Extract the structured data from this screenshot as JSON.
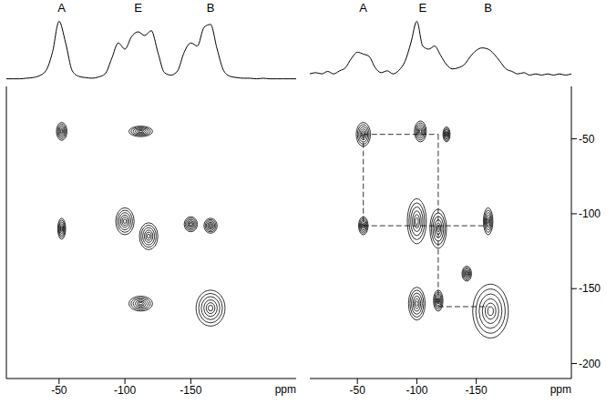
{
  "chart_data": [
    {
      "type": "contour",
      "xlabel": "ppm",
      "xlim": [
        -10,
        -230
      ],
      "xticks": [
        -50,
        -100,
        -150
      ],
      "ylim": [
        -210,
        -15
      ],
      "tick_labels": "x",
      "labels": [
        {
          "text": "A",
          "x": -52
        },
        {
          "text": "E",
          "x": -110
        },
        {
          "text": "B",
          "x": -165
        }
      ],
      "projection": {
        "ylim": [
          0,
          1
        ],
        "x": [
          -10,
          -15,
          -20,
          -25,
          -30,
          -35,
          -40,
          -45,
          -50,
          -55,
          -60,
          -65,
          -70,
          -75,
          -80,
          -85,
          -90,
          -95,
          -100,
          -105,
          -110,
          -115,
          -120,
          -125,
          -130,
          -135,
          -140,
          -145,
          -150,
          -155,
          -160,
          -165,
          -170,
          -175,
          -180,
          -185,
          -190,
          -195,
          -200,
          -205,
          -210,
          -215,
          -220,
          -225,
          -230
        ],
        "values": [
          0.02,
          0.02,
          0.02,
          0.03,
          0.04,
          0.07,
          0.15,
          0.45,
          0.95,
          0.6,
          0.15,
          0.06,
          0.04,
          0.03,
          0.05,
          0.1,
          0.35,
          0.6,
          0.5,
          0.7,
          0.78,
          0.72,
          0.8,
          0.45,
          0.12,
          0.08,
          0.15,
          0.45,
          0.6,
          0.55,
          0.85,
          0.9,
          0.5,
          0.15,
          0.06,
          0.04,
          0.03,
          0.03,
          0.02,
          0.03,
          0.02,
          0.02,
          0.02,
          0.02,
          0.02
        ]
      },
      "peaks": [
        {
          "x": -52,
          "y": -45,
          "width": 8,
          "height": 12
        },
        {
          "x": -52,
          "y": -110,
          "width": 6,
          "height": 14
        },
        {
          "x": -112,
          "y": -45,
          "width": 18,
          "height": 7
        },
        {
          "x": -100,
          "y": -105,
          "width": 14,
          "height": 18
        },
        {
          "x": -118,
          "y": -115,
          "width": 14,
          "height": 18
        },
        {
          "x": -150,
          "y": -107,
          "width": 10,
          "height": 10
        },
        {
          "x": -165,
          "y": -108,
          "width": 10,
          "height": 10
        },
        {
          "x": -112,
          "y": -160,
          "width": 18,
          "height": 10
        },
        {
          "x": -165,
          "y": -163,
          "width": 22,
          "height": 24
        }
      ],
      "connections": []
    },
    {
      "type": "contour",
      "xlabel": "ppm",
      "xlim": [
        -10,
        -230
      ],
      "xticks": [
        -50,
        -100,
        -150
      ],
      "ylim": [
        -210,
        -15
      ],
      "yticks": [
        -50,
        -100,
        -150,
        -200
      ],
      "labels": [
        {
          "text": "A",
          "x": -55
        },
        {
          "text": "E",
          "x": -105
        },
        {
          "text": "B",
          "x": -160
        }
      ],
      "projection": {
        "ylim": [
          0,
          1
        ],
        "x": [
          -10,
          -15,
          -20,
          -25,
          -30,
          -35,
          -40,
          -45,
          -50,
          -55,
          -60,
          -65,
          -70,
          -75,
          -80,
          -85,
          -90,
          -95,
          -100,
          -105,
          -110,
          -115,
          -120,
          -125,
          -130,
          -135,
          -140,
          -145,
          -150,
          -155,
          -160,
          -165,
          -170,
          -175,
          -180,
          -185,
          -190,
          -195,
          -200,
          -205,
          -210,
          -215,
          -220,
          -225,
          -230
        ],
        "values": [
          0.1,
          0.12,
          0.1,
          0.14,
          0.1,
          0.15,
          0.2,
          0.35,
          0.45,
          0.42,
          0.38,
          0.2,
          0.12,
          0.15,
          0.1,
          0.16,
          0.3,
          0.6,
          0.95,
          0.55,
          0.5,
          0.55,
          0.4,
          0.25,
          0.18,
          0.2,
          0.25,
          0.38,
          0.48,
          0.52,
          0.5,
          0.42,
          0.3,
          0.18,
          0.14,
          0.1,
          0.12,
          0.08,
          0.1,
          0.08,
          0.1,
          0.08,
          0.1,
          0.08,
          0.1
        ]
      },
      "peaks": [
        {
          "x": -55,
          "y": -47,
          "width": 12,
          "height": 16
        },
        {
          "x": -55,
          "y": -108,
          "width": 8,
          "height": 12
        },
        {
          "x": -103,
          "y": -45,
          "width": 10,
          "height": 14
        },
        {
          "x": -125,
          "y": -47,
          "width": 6,
          "height": 10
        },
        {
          "x": -100,
          "y": -105,
          "width": 16,
          "height": 30
        },
        {
          "x": -118,
          "y": -110,
          "width": 14,
          "height": 26
        },
        {
          "x": -100,
          "y": -160,
          "width": 14,
          "height": 22
        },
        {
          "x": -118,
          "y": -158,
          "width": 8,
          "height": 14
        },
        {
          "x": -160,
          "y": -105,
          "width": 8,
          "height": 18
        },
        {
          "x": -162,
          "y": -165,
          "width": 30,
          "height": 36
        },
        {
          "x": -142,
          "y": -140,
          "width": 8,
          "height": 10
        }
      ],
      "connections": [
        {
          "x": [
            -55,
            -55
          ],
          "y": [
            -47,
            -108
          ]
        },
        {
          "x": [
            -55,
            -118
          ],
          "y": [
            -47,
            -47
          ]
        },
        {
          "x": [
            -118,
            -118
          ],
          "y": [
            -47,
            -162
          ]
        },
        {
          "x": [
            -55,
            -160
          ],
          "y": [
            -108,
            -108
          ]
        },
        {
          "x": [
            -118,
            -160
          ],
          "y": [
            -162,
            -162
          ]
        }
      ]
    }
  ]
}
